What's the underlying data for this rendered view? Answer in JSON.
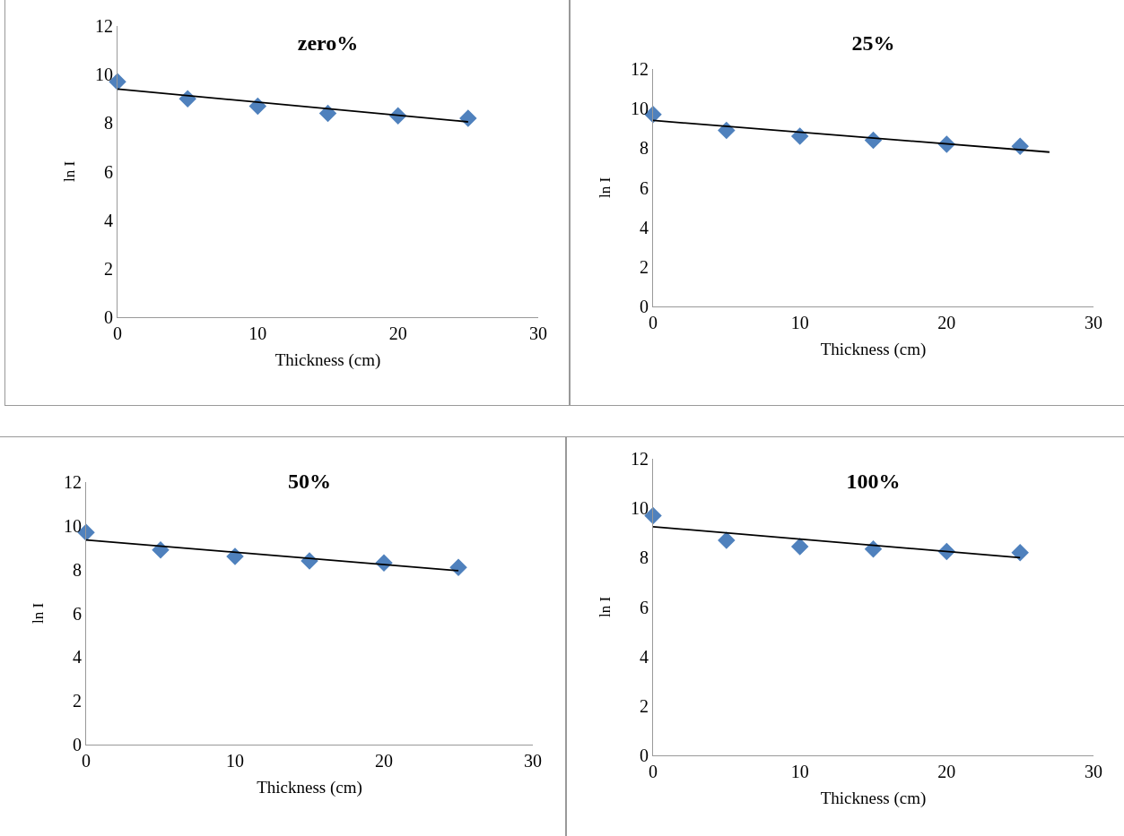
{
  "chart_data": [
    {
      "type": "scatter",
      "title": "zero%",
      "xlabel": "Thickness (cm)",
      "ylabel": "ln I",
      "marker": "diamond",
      "xlim": [
        0,
        30
      ],
      "xticks": [
        0,
        10,
        20,
        30
      ],
      "ylim": [
        0,
        12
      ],
      "yticks": [
        0,
        2,
        4,
        6,
        8,
        10,
        12
      ],
      "x": [
        0,
        5,
        10,
        15,
        20,
        25
      ],
      "series": [
        {
          "color": "#4f81bd",
          "values": [
            9.7,
            9.0,
            8.7,
            8.4,
            8.3,
            8.2
          ]
        },
        {
          "type": "line",
          "color": "#000000",
          "marker": "none",
          "x": [
            0,
            25
          ],
          "values": [
            9.4,
            8.05
          ]
        }
      ]
    },
    {
      "type": "scatter",
      "title": "25%",
      "xlabel": "Thickness (cm)",
      "ylabel": "ln I",
      "marker": "diamond",
      "xlim": [
        0,
        30
      ],
      "xticks": [
        0,
        10,
        20,
        30
      ],
      "ylim": [
        0,
        12
      ],
      "yticks": [
        0,
        2,
        4,
        6,
        8,
        10,
        12
      ],
      "x": [
        0,
        5,
        10,
        15,
        20,
        25
      ],
      "series": [
        {
          "color": "#4f81bd",
          "values": [
            9.7,
            8.9,
            8.6,
            8.4,
            8.2,
            8.1
          ]
        },
        {
          "type": "line",
          "color": "#000000",
          "marker": "none",
          "x": [
            0,
            27
          ],
          "values": [
            9.4,
            7.8
          ]
        }
      ]
    },
    {
      "type": "scatter",
      "title": "50%",
      "xlabel": "Thickness (cm)",
      "ylabel": "ln I",
      "marker": "diamond",
      "xlim": [
        0,
        30
      ],
      "xticks": [
        0,
        10,
        20,
        30
      ],
      "ylim": [
        0,
        12
      ],
      "yticks": [
        0,
        2,
        4,
        6,
        8,
        10,
        12
      ],
      "x": [
        0,
        5,
        10,
        15,
        20,
        25
      ],
      "series": [
        {
          "color": "#4f81bd",
          "values": [
            9.7,
            8.9,
            8.6,
            8.4,
            8.3,
            8.1
          ]
        },
        {
          "type": "line",
          "color": "#000000",
          "marker": "none",
          "x": [
            0,
            25
          ],
          "values": [
            9.35,
            7.95
          ]
        }
      ]
    },
    {
      "type": "scatter",
      "title": "100%",
      "xlabel": "Thickness (cm)",
      "ylabel": "ln I",
      "marker": "diamond",
      "xlim": [
        0,
        30
      ],
      "xticks": [
        0,
        10,
        20,
        30
      ],
      "ylim": [
        0,
        12
      ],
      "yticks": [
        0,
        2,
        4,
        6,
        8,
        10,
        12
      ],
      "x": [
        0,
        5,
        10,
        15,
        20,
        25
      ],
      "series": [
        {
          "color": "#4f81bd",
          "values": [
            9.7,
            8.7,
            8.45,
            8.35,
            8.25,
            8.2
          ]
        },
        {
          "type": "line",
          "color": "#000000",
          "marker": "none",
          "x": [
            0,
            25
          ],
          "values": [
            9.25,
            8.0
          ]
        }
      ]
    }
  ]
}
